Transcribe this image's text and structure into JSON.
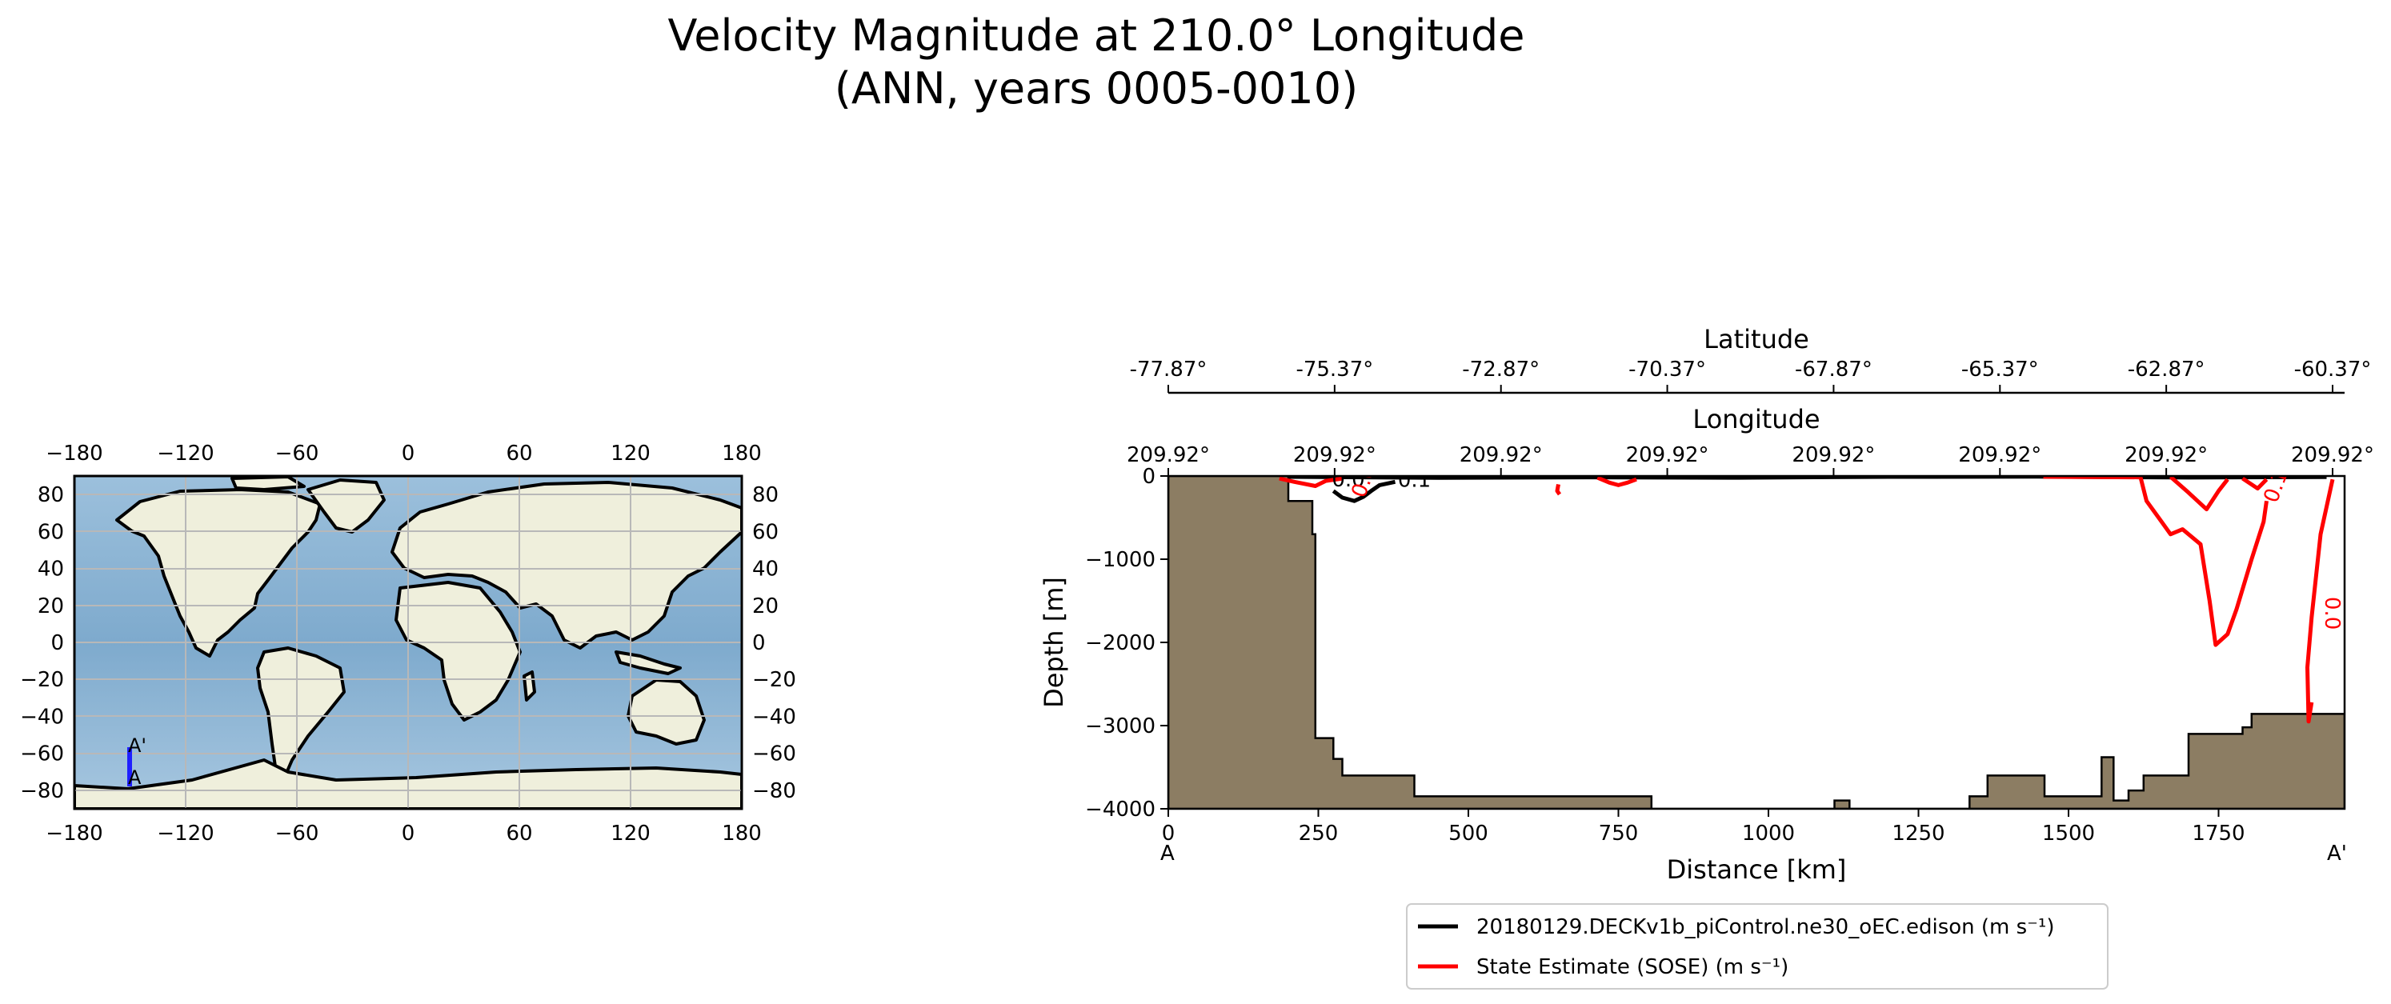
{
  "title": {
    "line1": "Velocity Magnitude at 210.0° Longitude",
    "line2": "(ANN, years 0005-0010)"
  },
  "map": {
    "x_ticks": [
      "−180",
      "−120",
      "−60",
      "0",
      "60",
      "120",
      "180"
    ],
    "y_ticks": [
      "80",
      "60",
      "40",
      "20",
      "0",
      "−20",
      "−40",
      "−60",
      "−80"
    ],
    "section_start_label": "A",
    "section_end_label": "A'",
    "colors": {
      "ocean": "#8fb7d6",
      "land": "#efefdc",
      "section": "#1f1fff",
      "grid": "#b8b8b8"
    }
  },
  "chart_data": {
    "type": "contour-section",
    "xlabel": "Distance [km]",
    "ylabel": "Depth [m]",
    "xlim": [
      0,
      1960
    ],
    "ylim": [
      -4000,
      0
    ],
    "x_ticks": [
      "0",
      "250",
      "500",
      "750",
      "1000",
      "1250",
      "1500",
      "1750"
    ],
    "y_ticks": [
      "0",
      "−1000",
      "−2000",
      "−3000",
      "−4000"
    ],
    "start_label": "A",
    "end_label": "A'",
    "top_axis_1": {
      "label": "Longitude",
      "ticks": [
        "209.92°",
        "209.92°",
        "209.92°",
        "209.92°",
        "209.92°",
        "209.92°",
        "209.92°",
        "209.92°"
      ]
    },
    "top_axis_2": {
      "label": "Latitude",
      "ticks": [
        "-77.87°",
        "-75.37°",
        "-72.87°",
        "-70.37°",
        "-67.87°",
        "-65.37°",
        "-62.87°",
        "-60.37°"
      ]
    },
    "contour_labels": [
      "0.0",
      "0.1",
      "0.0",
      "0.1",
      "0.0"
    ],
    "bathymetry": [
      [
        0,
        0
      ],
      [
        200,
        0
      ],
      [
        200,
        -300
      ],
      [
        240,
        -300
      ],
      [
        240,
        -700
      ],
      [
        245,
        -700
      ],
      [
        245,
        -3150
      ],
      [
        275,
        -3150
      ],
      [
        275,
        -3400
      ],
      [
        290,
        -3400
      ],
      [
        290,
        -3600
      ],
      [
        410,
        -3600
      ],
      [
        410,
        -3850
      ],
      [
        805,
        -3850
      ],
      [
        805,
        -4000
      ],
      [
        1110,
        -4000
      ],
      [
        1110,
        -3900
      ],
      [
        1135,
        -3900
      ],
      [
        1135,
        -4000
      ],
      [
        1335,
        -4000
      ],
      [
        1335,
        -3850
      ],
      [
        1365,
        -3850
      ],
      [
        1365,
        -3600
      ],
      [
        1460,
        -3600
      ],
      [
        1460,
        -3850
      ],
      [
        1555,
        -3850
      ],
      [
        1555,
        -3380
      ],
      [
        1575,
        -3380
      ],
      [
        1575,
        -3900
      ],
      [
        1600,
        -3900
      ],
      [
        1600,
        -3780
      ],
      [
        1625,
        -3780
      ],
      [
        1625,
        -3600
      ],
      [
        1700,
        -3600
      ],
      [
        1700,
        -3100
      ],
      [
        1790,
        -3100
      ],
      [
        1790,
        -3020
      ],
      [
        1805,
        -3020
      ],
      [
        1805,
        -2860
      ],
      [
        1960,
        -2860
      ],
      [
        1960,
        -4000
      ],
      [
        0,
        -4000
      ]
    ],
    "series": [
      {
        "name": "20180129.DECKv1b_piControl.ne30_oEC.edison (m s⁻¹)",
        "color": "#000000",
        "contours": [
          [
            [
              275,
              -180
            ],
            [
              290,
              -260
            ],
            [
              310,
              -300
            ],
            [
              325,
              -250
            ],
            [
              338,
              -180
            ],
            [
              352,
              -110
            ],
            [
              378,
              -70
            ]
          ],
          [
            [
              200,
              -10
            ],
            [
              450,
              -22
            ],
            [
              700,
              -15
            ],
            [
              950,
              -20
            ],
            [
              1200,
              -10
            ],
            [
              1450,
              -8
            ],
            [
              1700,
              -18
            ],
            [
              1930,
              -12
            ]
          ]
        ]
      },
      {
        "name": "State Estimate (SOSE) (m s⁻¹)",
        "color": "#ff0000",
        "contours": [
          [
            [
              185,
              -30
            ],
            [
              210,
              -70
            ],
            [
              245,
              -120
            ],
            [
              262,
              -60
            ],
            [
              290,
              -30
            ]
          ],
          [
            [
              650,
              -100
            ],
            [
              648,
              -180
            ],
            [
              652,
              -220
            ]
          ],
          [
            [
              715,
              -20
            ],
            [
              735,
              -80
            ],
            [
              750,
              -110
            ],
            [
              765,
              -80
            ],
            [
              780,
              -40
            ]
          ],
          [
            [
              1458,
              -10
            ],
            [
              1620,
              -15
            ],
            [
              1630,
              -300
            ],
            [
              1655,
              -550
            ],
            [
              1670,
              -700
            ],
            [
              1690,
              -640
            ],
            [
              1720,
              -820
            ],
            [
              1735,
              -1500
            ],
            [
              1745,
              -2030
            ],
            [
              1765,
              -1900
            ],
            [
              1780,
              -1600
            ],
            [
              1805,
              -1000
            ],
            [
              1825,
              -550
            ],
            [
              1830,
              -300
            ]
          ],
          [
            [
              1670,
              -10
            ],
            [
              1700,
              -200
            ],
            [
              1730,
              -400
            ],
            [
              1750,
              -180
            ],
            [
              1765,
              -40
            ]
          ],
          [
            [
              1790,
              -30
            ],
            [
              1815,
              -150
            ],
            [
              1830,
              -40
            ]
          ],
          [
            [
              1940,
              -40
            ],
            [
              1920,
              -700
            ],
            [
              1905,
              -1700
            ],
            [
              1898,
              -2300
            ],
            [
              1900,
              -2950
            ],
            [
              1905,
              -2720
            ]
          ]
        ]
      }
    ]
  }
}
